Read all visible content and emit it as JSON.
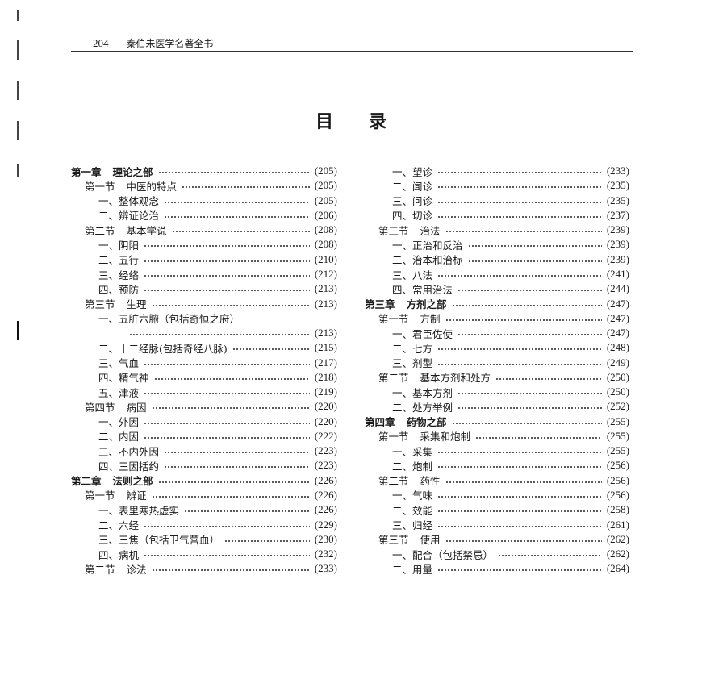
{
  "running_head": {
    "page_number": "204",
    "book_title": "秦伯未医学名著全书"
  },
  "title": [
    "目",
    "录"
  ],
  "toc_left": [
    {
      "level": 0,
      "prefix": "第一章",
      "label": "理论之部",
      "page": "(205)"
    },
    {
      "level": 1,
      "prefix": "第一节",
      "label": "中医的特点",
      "page": "(205)"
    },
    {
      "level": 2,
      "label": "一、整体观念",
      "page": "(205)"
    },
    {
      "level": 2,
      "label": "二、辨证论治",
      "page": "(206)"
    },
    {
      "level": 1,
      "prefix": "第二节",
      "label": "基本学说",
      "page": "(208)"
    },
    {
      "level": 2,
      "label": "一、阴阳",
      "page": "(208)"
    },
    {
      "level": 2,
      "label": "二、五行",
      "page": "(210)"
    },
    {
      "level": 2,
      "label": "三、经络",
      "page": "(212)"
    },
    {
      "level": 2,
      "label": "四、预防",
      "page": "(213)"
    },
    {
      "level": 1,
      "prefix": "第三节",
      "label": "生理",
      "page": "(213)"
    },
    {
      "level": 2,
      "label": "一、五脏六腑（包括奇恒之府）",
      "page": ""
    },
    {
      "level": "cont",
      "label": "",
      "page": "(213)"
    },
    {
      "level": 2,
      "label": "二、十二经脉(包括奇经八脉)",
      "page": "(215)"
    },
    {
      "level": 2,
      "label": "三、气血",
      "page": "(217)"
    },
    {
      "level": 2,
      "label": "四、精气神",
      "page": "(218)"
    },
    {
      "level": 2,
      "label": "五、津液",
      "page": "(219)"
    },
    {
      "level": 1,
      "prefix": "第四节",
      "label": "病因",
      "page": "(220)"
    },
    {
      "level": 2,
      "label": "一、外因",
      "page": "(220)"
    },
    {
      "level": 2,
      "label": "二、内因",
      "page": "(222)"
    },
    {
      "level": 2,
      "label": "三、不内外因",
      "page": "(223)"
    },
    {
      "level": 2,
      "label": "四、三因括约",
      "page": "(223)"
    },
    {
      "level": 0,
      "prefix": "第二章",
      "label": "法则之部",
      "page": "(226)"
    },
    {
      "level": 1,
      "prefix": "第一节",
      "label": "辨证",
      "page": "(226)"
    },
    {
      "level": 2,
      "label": "一、表里寒热虚实",
      "page": "(226)"
    },
    {
      "level": 2,
      "label": "二、六经",
      "page": "(229)"
    },
    {
      "level": 2,
      "label": "三、三焦（包括卫气营血）",
      "page": "(230)"
    },
    {
      "level": 2,
      "label": "四、病机",
      "page": "(232)"
    },
    {
      "level": 1,
      "prefix": "第二节",
      "label": "诊法",
      "page": "(233)"
    }
  ],
  "toc_right": [
    {
      "level": 2,
      "label": "一、望诊",
      "page": "(233)"
    },
    {
      "level": 2,
      "label": "二、闻诊",
      "page": "(235)"
    },
    {
      "level": 2,
      "label": "三、问诊",
      "page": "(235)"
    },
    {
      "level": 2,
      "label": "四、切诊",
      "page": "(237)"
    },
    {
      "level": 1,
      "prefix": "第三节",
      "label": "治法",
      "page": "(239)"
    },
    {
      "level": 2,
      "label": "一、正治和反治",
      "page": "(239)"
    },
    {
      "level": 2,
      "label": "二、治本和治标",
      "page": "(239)"
    },
    {
      "level": 2,
      "label": "三、八法",
      "page": "(241)"
    },
    {
      "level": 2,
      "label": "四、常用治法",
      "page": "(244)"
    },
    {
      "level": 0,
      "prefix": "第三章",
      "label": "方剂之部",
      "page": "(247)"
    },
    {
      "level": 1,
      "prefix": "第一节",
      "label": "方制",
      "page": "(247)"
    },
    {
      "level": 2,
      "label": "一、君臣佐使",
      "page": "(247)"
    },
    {
      "level": 2,
      "label": "二、七方",
      "page": "(248)"
    },
    {
      "level": 2,
      "label": "三、剂型",
      "page": "(249)"
    },
    {
      "level": 1,
      "prefix": "第二节",
      "label": "基本方剂和处方",
      "page": "(250)"
    },
    {
      "level": 2,
      "label": "一、基本方剂",
      "page": "(250)"
    },
    {
      "level": 2,
      "label": "二、处方举例",
      "page": "(252)"
    },
    {
      "level": 0,
      "prefix": "第四章",
      "label": "药物之部",
      "page": "(255)"
    },
    {
      "level": 1,
      "prefix": "第一节",
      "label": "采集和炮制",
      "page": "(255)"
    },
    {
      "level": 2,
      "label": "一、采集",
      "page": "(255)"
    },
    {
      "level": 2,
      "label": "二、炮制",
      "page": "(256)"
    },
    {
      "level": 1,
      "prefix": "第二节",
      "label": "药性",
      "page": "(256)"
    },
    {
      "level": 2,
      "label": "一、气味",
      "page": "(256)"
    },
    {
      "level": 2,
      "label": "二、效能",
      "page": "(258)"
    },
    {
      "level": 2,
      "label": "三、归经",
      "page": "(261)"
    },
    {
      "level": 1,
      "prefix": "第三节",
      "label": "使用",
      "page": "(262)"
    },
    {
      "level": 2,
      "label": "一、配合（包括禁忌）",
      "page": "(262)"
    },
    {
      "level": 2,
      "label": "二、用量",
      "page": "(264)"
    }
  ]
}
